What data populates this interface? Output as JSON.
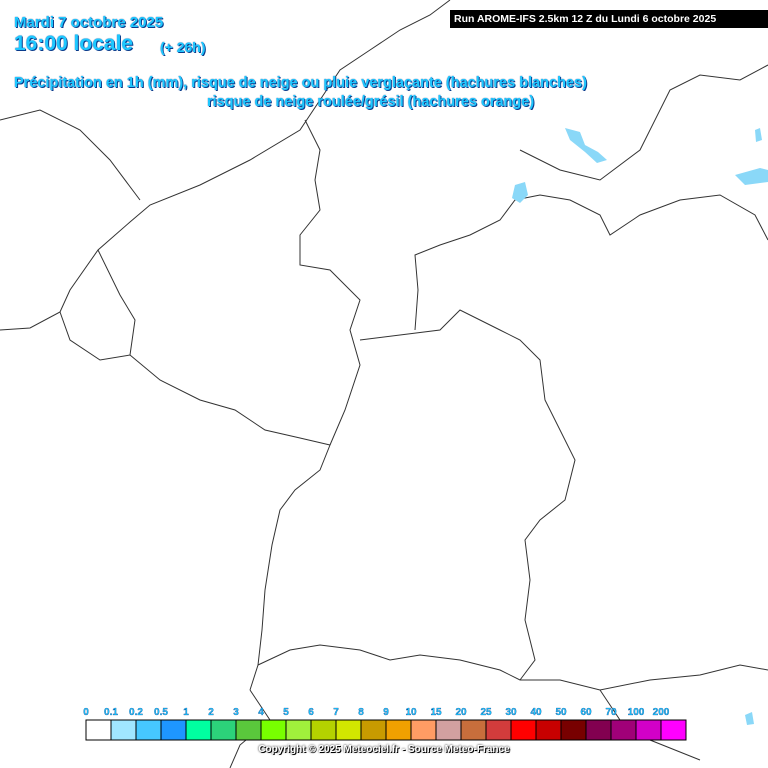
{
  "header": {
    "date": "Mardi 7 octobre 2025",
    "time": "16:00 locale",
    "lead": "(+ 26h)",
    "run": "Run AROME-IFS 2.5km 12 Z du Lundi 6 octobre 2025",
    "subtitle_line1": "Précipitation en 1h (mm), risque de neige ou pluie verglaçante (hachures blanches)",
    "subtitle_line2": "risque de neige roulée/grésil (hachures orange)"
  },
  "legend": {
    "items": [
      {
        "label": "0",
        "color": "#ffffff"
      },
      {
        "label": "0.1",
        "color": "#a0e6ff"
      },
      {
        "label": "0.2",
        "color": "#46c8ff"
      },
      {
        "label": "0.5",
        "color": "#1e96ff"
      },
      {
        "label": "1",
        "color": "#00ffa0"
      },
      {
        "label": "2",
        "color": "#2cd27a"
      },
      {
        "label": "3",
        "color": "#5ac83c"
      },
      {
        "label": "4",
        "color": "#78ff00"
      },
      {
        "label": "5",
        "color": "#a0f03c"
      },
      {
        "label": "6",
        "color": "#b4d200"
      },
      {
        "label": "7",
        "color": "#d2e600"
      },
      {
        "label": "8",
        "color": "#c89b00"
      },
      {
        "label": "9",
        "color": "#f0a000"
      },
      {
        "label": "10",
        "color": "#ff9c64"
      },
      {
        "label": "15",
        "color": "#d2a0a0"
      },
      {
        "label": "20",
        "color": "#c86e3c"
      },
      {
        "label": "25",
        "color": "#d23c3c"
      },
      {
        "label": "30",
        "color": "#ff0000"
      },
      {
        "label": "40",
        "color": "#c80000"
      },
      {
        "label": "50",
        "color": "#780000"
      },
      {
        "label": "60",
        "color": "#820050"
      },
      {
        "label": "70",
        "color": "#a00078"
      },
      {
        "label": "100",
        "color": "#d200c8"
      },
      {
        "label": "200",
        "color": "#ff00ff"
      }
    ]
  },
  "footer": {
    "copyright": "Copyright © 2025 Meteociel.fr - Source Meteo-France"
  }
}
